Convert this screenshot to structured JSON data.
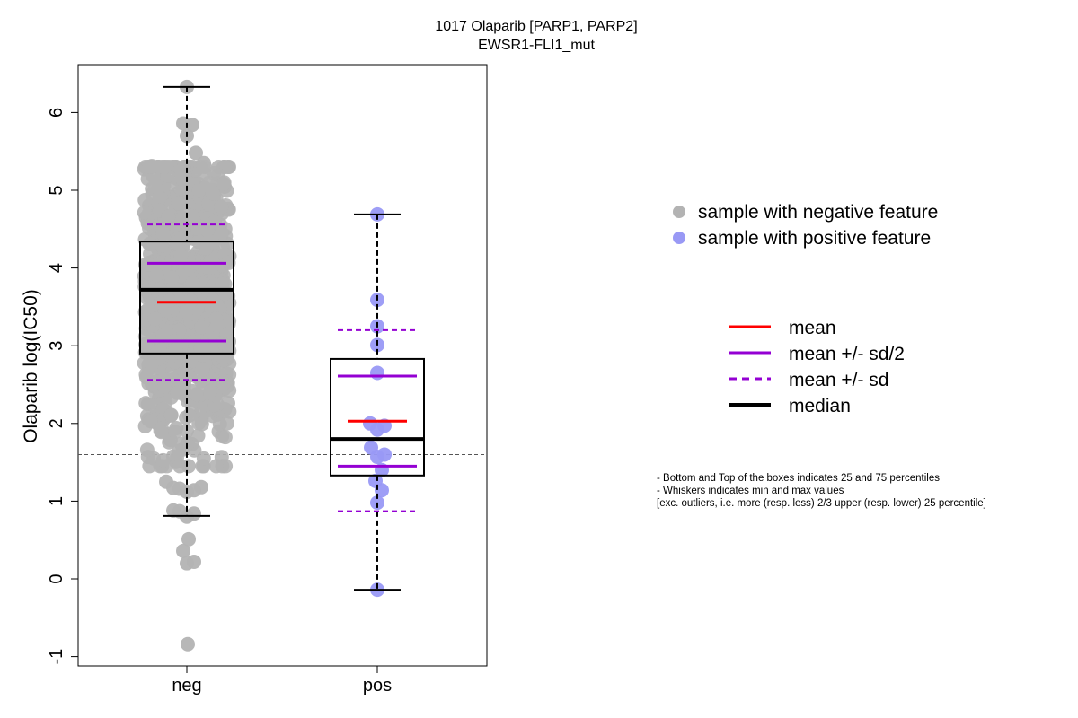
{
  "chart_data": {
    "type": "box",
    "title": "1017 Olaparib [PARP1, PARP2]",
    "subtitle": "EWSR1-FLI1_mut",
    "ylabel": "Olaparib log(IC50)",
    "xlabel": "",
    "ylim": [
      -1.1,
      6.6
    ],
    "yticks": [
      -1,
      0,
      1,
      2,
      3,
      4,
      5,
      6
    ],
    "categories": [
      "neg",
      "pos"
    ],
    "reference_line": 1.6,
    "groups": [
      {
        "category": "neg",
        "color": "#b3b3b3",
        "box": {
          "q1": 2.9,
          "median": 3.72,
          "q3": 4.34,
          "whisker_low": 0.81,
          "whisker_high": 6.33
        },
        "mean": 3.56,
        "mean_minus_half_sd": 3.06,
        "mean_plus_half_sd": 4.06,
        "mean_minus_sd": 2.56,
        "mean_plus_sd": 4.56,
        "n_points": 900,
        "highlight_points": [
          [
            0.0,
            6.33
          ],
          [
            -0.08,
            5.86
          ],
          [
            0.12,
            5.84
          ],
          [
            0.0,
            5.7
          ],
          [
            0.2,
            5.48
          ],
          [
            0.38,
            5.35
          ],
          [
            -0.12,
            5.2
          ],
          [
            0.5,
            5.1
          ],
          [
            -0.5,
            5.3
          ],
          [
            0.6,
            5.22
          ],
          [
            -0.78,
            5.31
          ],
          [
            -0.7,
            5.05
          ],
          [
            0.0,
            0.8
          ],
          [
            -0.3,
            0.88
          ],
          [
            -0.16,
            0.87
          ],
          [
            0.16,
            0.84
          ],
          [
            0.04,
            0.51
          ],
          [
            -0.08,
            0.36
          ],
          [
            0.0,
            0.2
          ],
          [
            0.16,
            0.22
          ],
          [
            0.02,
            -0.84
          ],
          [
            -0.46,
            1.25
          ],
          [
            -0.3,
            1.17
          ],
          [
            -0.16,
            1.16
          ],
          [
            0.0,
            1.12
          ],
          [
            0.16,
            1.14
          ],
          [
            0.32,
            1.18
          ]
        ]
      },
      {
        "category": "pos",
        "color": "#9999f5",
        "box": {
          "q1": 1.33,
          "median": 1.8,
          "q3": 2.83,
          "whisker_low": -0.14,
          "whisker_high": 4.69
        },
        "mean": 2.03,
        "mean_minus_half_sd": 1.45,
        "mean_plus_half_sd": 2.61,
        "mean_minus_sd": 0.87,
        "mean_plus_sd": 3.2,
        "points": [
          [
            0.0,
            4.69
          ],
          [
            0.0,
            3.59
          ],
          [
            0.0,
            3.25
          ],
          [
            0.0,
            3.01
          ],
          [
            0.0,
            2.65
          ],
          [
            -0.16,
            2.0
          ],
          [
            0.0,
            1.92
          ],
          [
            0.16,
            1.97
          ],
          [
            -0.14,
            1.69
          ],
          [
            0.0,
            1.57
          ],
          [
            0.16,
            1.6
          ],
          [
            0.1,
            1.4
          ],
          [
            -0.04,
            1.26
          ],
          [
            0.1,
            1.14
          ],
          [
            0.0,
            0.98
          ],
          [
            0.0,
            -0.14
          ]
        ]
      }
    ],
    "legend_points": [
      {
        "label": "sample with negative feature",
        "color": "#b3b3b3"
      },
      {
        "label": "sample with positive feature",
        "color": "#9999f5"
      }
    ],
    "legend_lines": [
      {
        "label": "mean",
        "color": "#ff0000",
        "style": "solid"
      },
      {
        "label": "mean +/- sd/2",
        "color": "#9400d3",
        "style": "solid"
      },
      {
        "label": "mean +/- sd",
        "color": "#9400d3",
        "style": "dashed"
      },
      {
        "label": "median",
        "color": "#000000",
        "style": "thick"
      }
    ],
    "notes": [
      "- Bottom and Top of the boxes indicates 25 and 75 percentiles",
      "- Whiskers indicates min and max values",
      "[exc. outliers, i.e. more (resp. less) 2/3 upper (resp. lower) 25 percentile]"
    ]
  }
}
